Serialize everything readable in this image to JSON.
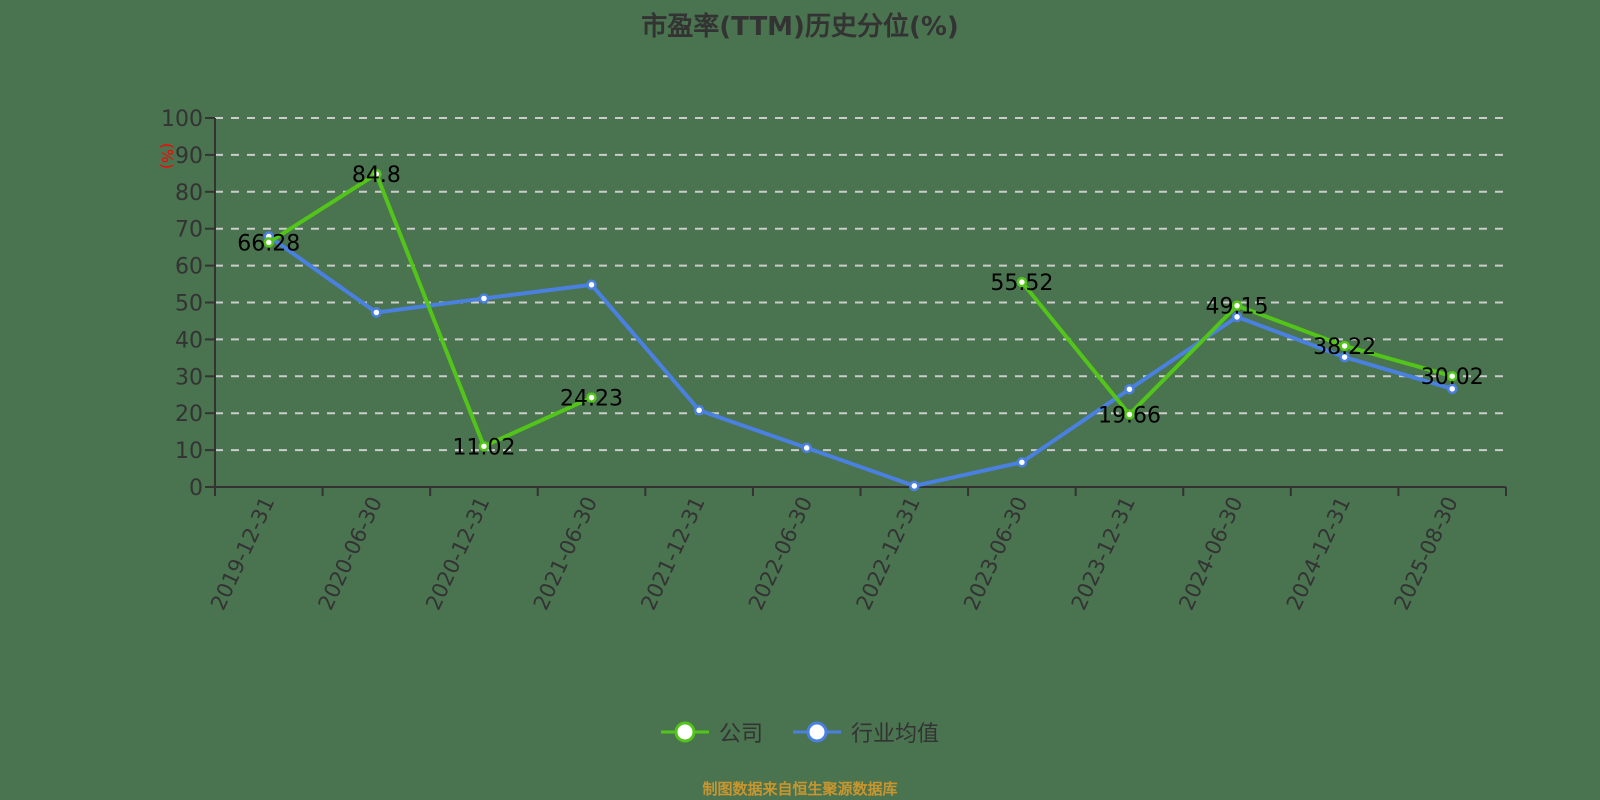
{
  "title": "市盈率(TTM)历史分位(%)",
  "source_note": "制图数据来自恒生聚源数据库",
  "colors": {
    "company": "#52c41a",
    "industry": "#4a80e0",
    "background": "#4a7350",
    "axis": "#333333",
    "grid": "#cccccc",
    "unit_label": "#ff0000",
    "source": "#c8962e"
  },
  "legend": [
    {
      "name": "公司",
      "color": "#52c41a"
    },
    {
      "name": "行业均值",
      "color": "#4a80e0"
    }
  ],
  "chart_data": {
    "type": "line",
    "title": "市盈率(TTM)历史分位(%)",
    "xlabel": "",
    "ylabel": "(%)",
    "ylim": [
      0,
      100
    ],
    "yticks": [
      0,
      10,
      20,
      30,
      40,
      50,
      60,
      70,
      80,
      90,
      100
    ],
    "grid": true,
    "legend_position": "bottom",
    "categories": [
      "2019-12-31",
      "2020-06-30",
      "2020-12-31",
      "2021-06-30",
      "2021-12-31",
      "2022-06-30",
      "2022-12-31",
      "2023-06-30",
      "2023-12-31",
      "2024-06-30",
      "2024-12-31",
      "2025-08-30"
    ],
    "series": [
      {
        "name": "公司",
        "values": [
          66.28,
          84.8,
          11.02,
          24.23,
          null,
          null,
          null,
          55.52,
          19.66,
          49.15,
          38.22,
          30.02
        ],
        "data_labels": true
      },
      {
        "name": "行业均值",
        "values": [
          67.9,
          47.3,
          51.1,
          54.8,
          20.8,
          10.6,
          0.3,
          6.7,
          26.5,
          46.1,
          35.2,
          26.6
        ],
        "data_labels": false
      }
    ]
  }
}
